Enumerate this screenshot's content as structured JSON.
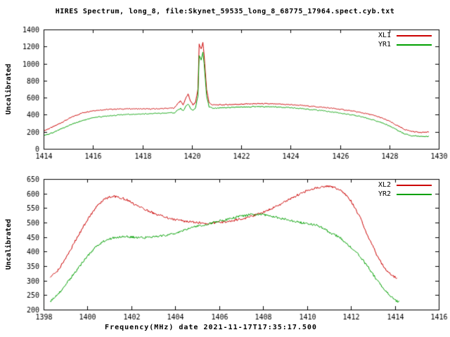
{
  "background": "#ffffff",
  "axis_color": "#000000",
  "chart_data": [
    {
      "type": "line",
      "title": "HIRES Spectrum, long_8, file:Skynet_59535_long_8_68775_17964.spect.cyb.txt",
      "ylabel": "Uncalibrated",
      "xlim": [
        1414,
        1430
      ],
      "ylim": [
        0,
        1400
      ],
      "xtick_step": 2,
      "ytick_step": 200,
      "grid": false,
      "legend_position": "top-right",
      "series": [
        {
          "name": "XL1",
          "color": "#cc0000",
          "points": [
            [
              1414.0,
              210
            ],
            [
              1414.4,
              260
            ],
            [
              1414.8,
              320
            ],
            [
              1415.2,
              380
            ],
            [
              1415.6,
              425
            ],
            [
              1416.0,
              448
            ],
            [
              1416.4,
              458
            ],
            [
              1416.8,
              465
            ],
            [
              1417.2,
              468
            ],
            [
              1417.6,
              470
            ],
            [
              1418.0,
              468
            ],
            [
              1418.4,
              468
            ],
            [
              1419.0,
              474
            ],
            [
              1419.3,
              480
            ],
            [
              1419.45,
              540
            ],
            [
              1419.55,
              560
            ],
            [
              1419.65,
              515
            ],
            [
              1419.75,
              590
            ],
            [
              1419.85,
              640
            ],
            [
              1419.95,
              560
            ],
            [
              1420.05,
              515
            ],
            [
              1420.15,
              545
            ],
            [
              1420.25,
              700
            ],
            [
              1420.3,
              1230
            ],
            [
              1420.38,
              1170
            ],
            [
              1420.45,
              1245
            ],
            [
              1420.5,
              1100
            ],
            [
              1420.6,
              700
            ],
            [
              1420.7,
              540
            ],
            [
              1420.85,
              515
            ],
            [
              1421.2,
              516
            ],
            [
              1421.6,
              520
            ],
            [
              1422.0,
              524
            ],
            [
              1422.4,
              528
            ],
            [
              1422.8,
              530
            ],
            [
              1423.2,
              527
            ],
            [
              1423.6,
              523
            ],
            [
              1424.0,
              518
            ],
            [
              1424.4,
              510
            ],
            [
              1424.8,
              500
            ],
            [
              1425.2,
              490
            ],
            [
              1425.6,
              478
            ],
            [
              1426.0,
              464
            ],
            [
              1426.4,
              448
            ],
            [
              1426.8,
              428
            ],
            [
              1427.2,
              405
            ],
            [
              1427.6,
              372
            ],
            [
              1428.0,
              325
            ],
            [
              1428.3,
              275
            ],
            [
              1428.6,
              230
            ],
            [
              1428.9,
              205
            ],
            [
              1429.2,
              195
            ],
            [
              1429.6,
              195
            ]
          ]
        },
        {
          "name": "YR1",
          "color": "#00a000",
          "points": [
            [
              1414.0,
              150
            ],
            [
              1414.4,
              195
            ],
            [
              1414.8,
              245
            ],
            [
              1415.2,
              295
            ],
            [
              1415.6,
              335
            ],
            [
              1416.0,
              362
            ],
            [
              1416.4,
              380
            ],
            [
              1416.8,
              392
            ],
            [
              1417.2,
              400
            ],
            [
              1417.6,
              406
            ],
            [
              1418.0,
              410
            ],
            [
              1418.4,
              413
            ],
            [
              1419.0,
              418
            ],
            [
              1419.3,
              424
            ],
            [
              1419.45,
              460
            ],
            [
              1419.55,
              475
            ],
            [
              1419.65,
              445
            ],
            [
              1419.75,
              495
            ],
            [
              1419.85,
              530
            ],
            [
              1419.95,
              475
            ],
            [
              1420.05,
              450
            ],
            [
              1420.15,
              480
            ],
            [
              1420.25,
              620
            ],
            [
              1420.3,
              1090
            ],
            [
              1420.38,
              1040
            ],
            [
              1420.45,
              1135
            ],
            [
              1420.5,
              1000
            ],
            [
              1420.6,
              620
            ],
            [
              1420.7,
              495
            ],
            [
              1420.85,
              478
            ],
            [
              1421.2,
              482
            ],
            [
              1421.6,
              486
            ],
            [
              1422.0,
              490
            ],
            [
              1422.4,
              494
            ],
            [
              1422.8,
              496
            ],
            [
              1423.2,
              494
            ],
            [
              1423.6,
              489
            ],
            [
              1424.0,
              482
            ],
            [
              1424.4,
              473
            ],
            [
              1424.8,
              462
            ],
            [
              1425.2,
              450
            ],
            [
              1425.6,
              436
            ],
            [
              1426.0,
              420
            ],
            [
              1426.4,
              402
            ],
            [
              1426.8,
              380
            ],
            [
              1427.2,
              352
            ],
            [
              1427.6,
              318
            ],
            [
              1428.0,
              270
            ],
            [
              1428.3,
              222
            ],
            [
              1428.6,
              178
            ],
            [
              1428.9,
              155
            ],
            [
              1429.2,
              146
            ],
            [
              1429.6,
              146
            ]
          ]
        }
      ]
    },
    {
      "type": "line",
      "xlabel": "Frequency(MHz) date 2021-11-17T17:35:17.500",
      "ylabel": "Uncalibrated",
      "xlim": [
        1398,
        1416
      ],
      "ylim": [
        200,
        650
      ],
      "xtick_step": 2,
      "ytick_step": 50,
      "grid": false,
      "legend_position": "top-right",
      "series": [
        {
          "name": "XL2",
          "color": "#cc0000",
          "points": [
            [
              1398.3,
              310
            ],
            [
              1398.6,
              330
            ],
            [
              1399.0,
              375
            ],
            [
              1399.5,
              445
            ],
            [
              1400.0,
              510
            ],
            [
              1400.4,
              555
            ],
            [
              1400.8,
              582
            ],
            [
              1401.1,
              590
            ],
            [
              1401.4,
              588
            ],
            [
              1401.8,
              578
            ],
            [
              1402.2,
              560
            ],
            [
              1402.6,
              545
            ],
            [
              1403.0,
              533
            ],
            [
              1403.5,
              520
            ],
            [
              1404.0,
              510
            ],
            [
              1404.5,
              504
            ],
            [
              1405.0,
              500
            ],
            [
              1405.5,
              497
            ],
            [
              1406.0,
              500
            ],
            [
              1406.5,
              505
            ],
            [
              1407.0,
              512
            ],
            [
              1407.5,
              522
            ],
            [
              1408.0,
              535
            ],
            [
              1408.5,
              552
            ],
            [
              1409.0,
              572
            ],
            [
              1409.5,
              592
            ],
            [
              1410.0,
              610
            ],
            [
              1410.4,
              620
            ],
            [
              1410.8,
              625
            ],
            [
              1411.2,
              622
            ],
            [
              1411.6,
              608
            ],
            [
              1412.0,
              575
            ],
            [
              1412.4,
              520
            ],
            [
              1412.8,
              450
            ],
            [
              1413.2,
              385
            ],
            [
              1413.6,
              335
            ],
            [
              1413.9,
              315
            ],
            [
              1414.1,
              310
            ]
          ]
        },
        {
          "name": "YR2",
          "color": "#00a000",
          "points": [
            [
              1398.3,
              228
            ],
            [
              1398.6,
              248
            ],
            [
              1399.0,
              285
            ],
            [
              1399.5,
              335
            ],
            [
              1400.0,
              385
            ],
            [
              1400.4,
              418
            ],
            [
              1400.8,
              438
            ],
            [
              1401.2,
              448
            ],
            [
              1401.6,
              452
            ],
            [
              1402.0,
              450
            ],
            [
              1402.5,
              448
            ],
            [
              1403.0,
              450
            ],
            [
              1403.5,
              455
            ],
            [
              1404.0,
              463
            ],
            [
              1404.5,
              475
            ],
            [
              1405.0,
              488
            ],
            [
              1405.5,
              496
            ],
            [
              1406.0,
              505
            ],
            [
              1406.5,
              513
            ],
            [
              1407.0,
              522
            ],
            [
              1407.5,
              528
            ],
            [
              1408.0,
              527
            ],
            [
              1408.5,
              520
            ],
            [
              1409.0,
              512
            ],
            [
              1409.5,
              503
            ],
            [
              1410.0,
              496
            ],
            [
              1410.5,
              490
            ],
            [
              1411.0,
              468
            ],
            [
              1411.5,
              448
            ],
            [
              1412.0,
              415
            ],
            [
              1412.4,
              385
            ],
            [
              1412.8,
              345
            ],
            [
              1413.2,
              300
            ],
            [
              1413.6,
              262
            ],
            [
              1414.0,
              232
            ],
            [
              1414.2,
              226
            ]
          ]
        }
      ]
    }
  ]
}
